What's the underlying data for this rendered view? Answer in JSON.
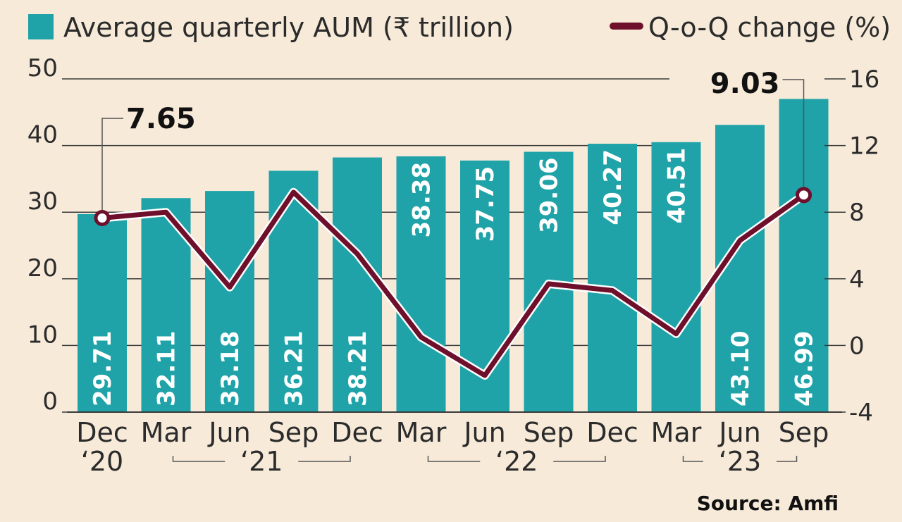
{
  "chart_data": {
    "type": "bar+line",
    "categories": [
      "Dec",
      "Mar",
      "Jun",
      "Sep",
      "Dec",
      "Mar",
      "Jun",
      "Sep",
      "Dec",
      "Mar",
      "Jun",
      "Sep"
    ],
    "year_labels": [
      {
        "label": "‘20",
        "from": 0,
        "to": 0
      },
      {
        "label": "‘21",
        "from": 1,
        "to": 4
      },
      {
        "label": "‘22",
        "from": 5,
        "to": 8
      },
      {
        "label": "‘23",
        "from": 9,
        "to": 11
      }
    ],
    "series": [
      {
        "name": "Average quarterly AUM (₹ trillion)",
        "type": "bar",
        "axis": "left",
        "color": "#1fa3a8",
        "values": [
          29.71,
          32.11,
          33.18,
          36.21,
          38.21,
          38.38,
          37.75,
          39.06,
          40.27,
          40.51,
          43.1,
          46.99
        ],
        "labels": [
          "29.71",
          "32.11",
          "33.18",
          "36.21",
          "38.21",
          "38.38",
          "37.75",
          "39.06",
          "40.27",
          "40.51",
          "43.10",
          "46.99"
        ]
      },
      {
        "name": "Q-o-Q change (%)",
        "type": "line",
        "axis": "right",
        "color": "#6e0f2b",
        "values": [
          7.65,
          8.0,
          3.5,
          9.2,
          5.5,
          0.5,
          -1.8,
          3.7,
          3.3,
          0.7,
          6.3,
          9.03
        ]
      }
    ],
    "callouts": [
      {
        "index": 0,
        "label": "7.65"
      },
      {
        "index": 11,
        "label": "9.03"
      }
    ],
    "y_left": {
      "min": 0,
      "max": 50,
      "ticks": [
        "0",
        "10",
        "20",
        "30",
        "40",
        "50"
      ]
    },
    "y_right": {
      "min": -4,
      "max": 16,
      "ticks": [
        "-4",
        "0",
        "4",
        "8",
        "12",
        "16"
      ]
    },
    "source": "Source: Amfi"
  }
}
